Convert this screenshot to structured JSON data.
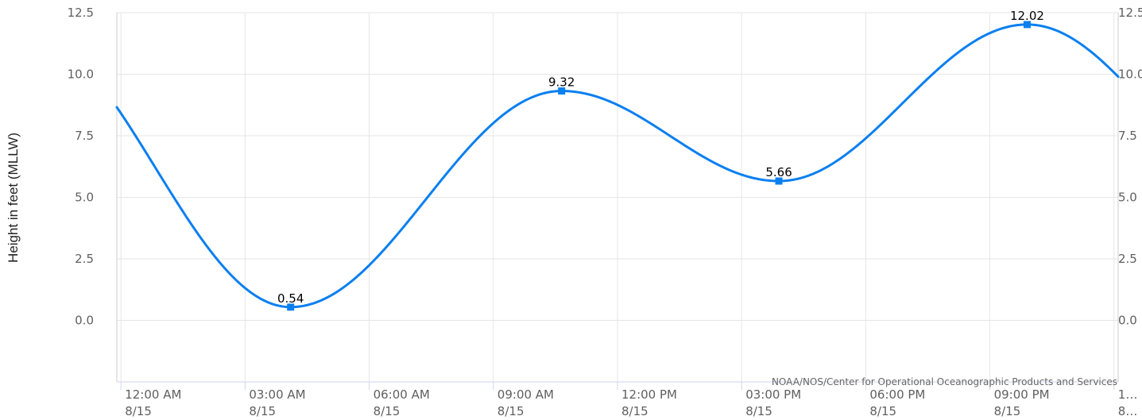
{
  "chart_data": {
    "type": "line",
    "ylabel": "Height in feet (MLLW)",
    "ylim": [
      -2.5,
      12.5
    ],
    "y_ticks": [
      "12.5",
      "10.0",
      "7.5",
      "5.0",
      "2.5",
      "0.0"
    ],
    "y_tick_values": [
      12.5,
      10.0,
      7.5,
      5.0,
      2.5,
      0.0
    ],
    "x_ticks": [
      {
        "time": "12:00 AM",
        "date": "8/15"
      },
      {
        "time": "03:00 AM",
        "date": "8/15"
      },
      {
        "time": "06:00 AM",
        "date": "8/15"
      },
      {
        "time": "09:00 AM",
        "date": "8/15"
      },
      {
        "time": "12:00 PM",
        "date": "8/15"
      },
      {
        "time": "03:00 PM",
        "date": "8/15"
      },
      {
        "time": "06:00 PM",
        "date": "8/15"
      },
      {
        "time": "09:00 PM",
        "date": "8/15"
      },
      {
        "time": "1…",
        "date": "8…"
      }
    ],
    "x_tick_hours": [
      0,
      3,
      6,
      9,
      12,
      15,
      18,
      21,
      24
    ],
    "xlim_hours": [
      -0.1,
      24.1
    ],
    "series": [
      {
        "color": "#0a7ff0",
        "start": {
          "hour": -0.1,
          "value": 8.66
        },
        "end": {
          "hour": 24.1,
          "value": 9.9
        },
        "extrema": [
          {
            "hour": 4.1,
            "value": 0.54,
            "label": "0.54"
          },
          {
            "hour": 10.65,
            "value": 9.32,
            "label": "9.32"
          },
          {
            "hour": 15.9,
            "value": 5.66,
            "label": "5.66"
          },
          {
            "hour": 21.9,
            "value": 12.02,
            "label": "12.02"
          }
        ]
      }
    ],
    "grid": true,
    "credit": "NOAA/NOS/Center for Operational Oceanographic Products and Services"
  }
}
